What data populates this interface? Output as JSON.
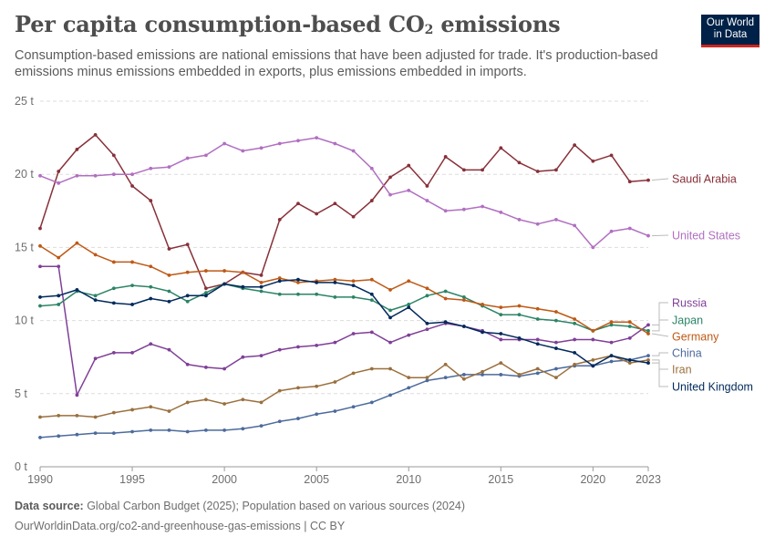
{
  "header": {
    "title_main": "Per capita consumption-based CO",
    "title_sub": "2",
    "title_tail": " emissions",
    "subtitle": "Consumption-based emissions are national emissions that have been adjusted for trade. It's production-based emissions minus emissions embedded in exports, plus emissions embedded in imports.",
    "logo_line1": "Our World",
    "logo_line2": "in Data"
  },
  "footer": {
    "source_label": "Data source:",
    "source_text": " Global Carbon Budget (2025); Population based on various sources (2024)",
    "url_text": "OurWorldinData.org/co2-and-greenhouse-gas-emissions | CC BY"
  },
  "chart_data": {
    "type": "line",
    "title": "Per capita consumption-based CO2 emissions",
    "unit": "t",
    "xlim": [
      1990,
      2023
    ],
    "ylim": [
      0,
      25
    ],
    "x_ticks": [
      "1990",
      "1995",
      "2000",
      "2005",
      "2010",
      "2015",
      "2020",
      "2023"
    ],
    "y_ticks": [
      "0 t",
      "5 t",
      "10 t",
      "15 t",
      "20 t",
      "25 t"
    ],
    "grid": "horizontal dashed",
    "x": [
      1990,
      1991,
      1992,
      1993,
      1994,
      1995,
      1996,
      1997,
      1998,
      1999,
      2000,
      2001,
      2002,
      2003,
      2004,
      2005,
      2006,
      2007,
      2008,
      2009,
      2010,
      2011,
      2012,
      2013,
      2014,
      2015,
      2016,
      2017,
      2018,
      2019,
      2020,
      2021,
      2022,
      2023
    ],
    "series": [
      {
        "name": "Saudi Arabia",
        "color": "#883039",
        "values": [
          16.3,
          20.2,
          21.7,
          22.7,
          21.3,
          19.2,
          18.2,
          14.9,
          15.2,
          12.2,
          12.5,
          13.3,
          13.1,
          16.9,
          18.0,
          17.3,
          18.0,
          17.1,
          18.2,
          19.8,
          20.6,
          19.2,
          21.2,
          20.3,
          20.3,
          21.8,
          20.8,
          20.2,
          20.3,
          22.0,
          20.9,
          21.3,
          19.5,
          19.6
        ]
      },
      {
        "name": "United States",
        "color": "#b16fc1",
        "values": [
          19.9,
          19.4,
          19.9,
          19.9,
          20.0,
          20.0,
          20.4,
          20.5,
          21.1,
          21.3,
          22.1,
          21.6,
          21.8,
          22.1,
          22.3,
          22.5,
          22.1,
          21.6,
          20.4,
          18.6,
          18.9,
          18.2,
          17.5,
          17.6,
          17.8,
          17.4,
          16.9,
          16.6,
          16.9,
          16.5,
          15.0,
          16.1,
          16.3,
          15.8
        ]
      },
      {
        "name": "Russia",
        "color": "#7f3f98",
        "values": [
          13.7,
          13.7,
          4.9,
          7.4,
          7.8,
          7.8,
          8.4,
          8.0,
          7.0,
          6.8,
          6.7,
          7.5,
          7.6,
          8.0,
          8.2,
          8.3,
          8.5,
          9.1,
          9.2,
          8.5,
          9.0,
          9.4,
          9.8,
          9.6,
          9.3,
          8.7,
          8.7,
          8.7,
          8.5,
          8.7,
          8.7,
          8.5,
          8.8,
          9.7
        ]
      },
      {
        "name": "Japan",
        "color": "#2c8465",
        "values": [
          11.0,
          11.1,
          12.0,
          11.7,
          12.2,
          12.4,
          12.3,
          12.0,
          11.3,
          11.9,
          12.5,
          12.2,
          12.0,
          11.8,
          11.8,
          11.8,
          11.6,
          11.6,
          11.4,
          10.7,
          11.1,
          11.7,
          12.0,
          11.6,
          11.0,
          10.4,
          10.4,
          10.1,
          10.0,
          9.8,
          9.3,
          9.7,
          9.6,
          9.3
        ]
      },
      {
        "name": "Germany",
        "color": "#be5915",
        "values": [
          15.1,
          14.3,
          15.3,
          14.5,
          14.0,
          14.0,
          13.7,
          13.1,
          13.3,
          13.4,
          13.4,
          13.3,
          12.6,
          12.9,
          12.6,
          12.7,
          12.8,
          12.7,
          12.8,
          12.1,
          12.7,
          12.2,
          11.5,
          11.4,
          11.1,
          10.9,
          11.0,
          10.8,
          10.6,
          10.1,
          9.3,
          9.9,
          9.9,
          9.1
        ]
      },
      {
        "name": "China",
        "color": "#4c6a9c",
        "values": [
          2.0,
          2.1,
          2.2,
          2.3,
          2.3,
          2.4,
          2.5,
          2.5,
          2.4,
          2.5,
          2.5,
          2.6,
          2.8,
          3.1,
          3.3,
          3.6,
          3.8,
          4.1,
          4.4,
          4.9,
          5.4,
          5.9,
          6.1,
          6.3,
          6.3,
          6.3,
          6.2,
          6.4,
          6.7,
          6.9,
          6.9,
          7.2,
          7.3,
          7.6
        ]
      },
      {
        "name": "Iran",
        "color": "#9a6f3d",
        "values": [
          3.4,
          3.5,
          3.5,
          3.4,
          3.7,
          3.9,
          4.1,
          3.8,
          4.4,
          4.6,
          4.3,
          4.6,
          4.4,
          5.2,
          5.4,
          5.5,
          5.8,
          6.4,
          6.7,
          6.7,
          6.1,
          6.1,
          7.0,
          6.0,
          6.5,
          7.1,
          6.3,
          6.7,
          6.1,
          7.0,
          7.3,
          7.6,
          7.1,
          7.3
        ]
      },
      {
        "name": "United Kingdom",
        "color": "#00295b",
        "values": [
          11.6,
          11.7,
          12.1,
          11.4,
          11.2,
          11.1,
          11.5,
          11.3,
          11.7,
          11.7,
          12.5,
          12.3,
          12.3,
          12.7,
          12.8,
          12.6,
          12.6,
          12.4,
          11.8,
          10.2,
          10.9,
          9.8,
          9.9,
          9.6,
          9.2,
          9.1,
          8.8,
          8.4,
          8.1,
          7.8,
          6.9,
          7.6,
          7.3,
          7.1
        ]
      }
    ],
    "legend_placement": "right, labels at line ends"
  }
}
